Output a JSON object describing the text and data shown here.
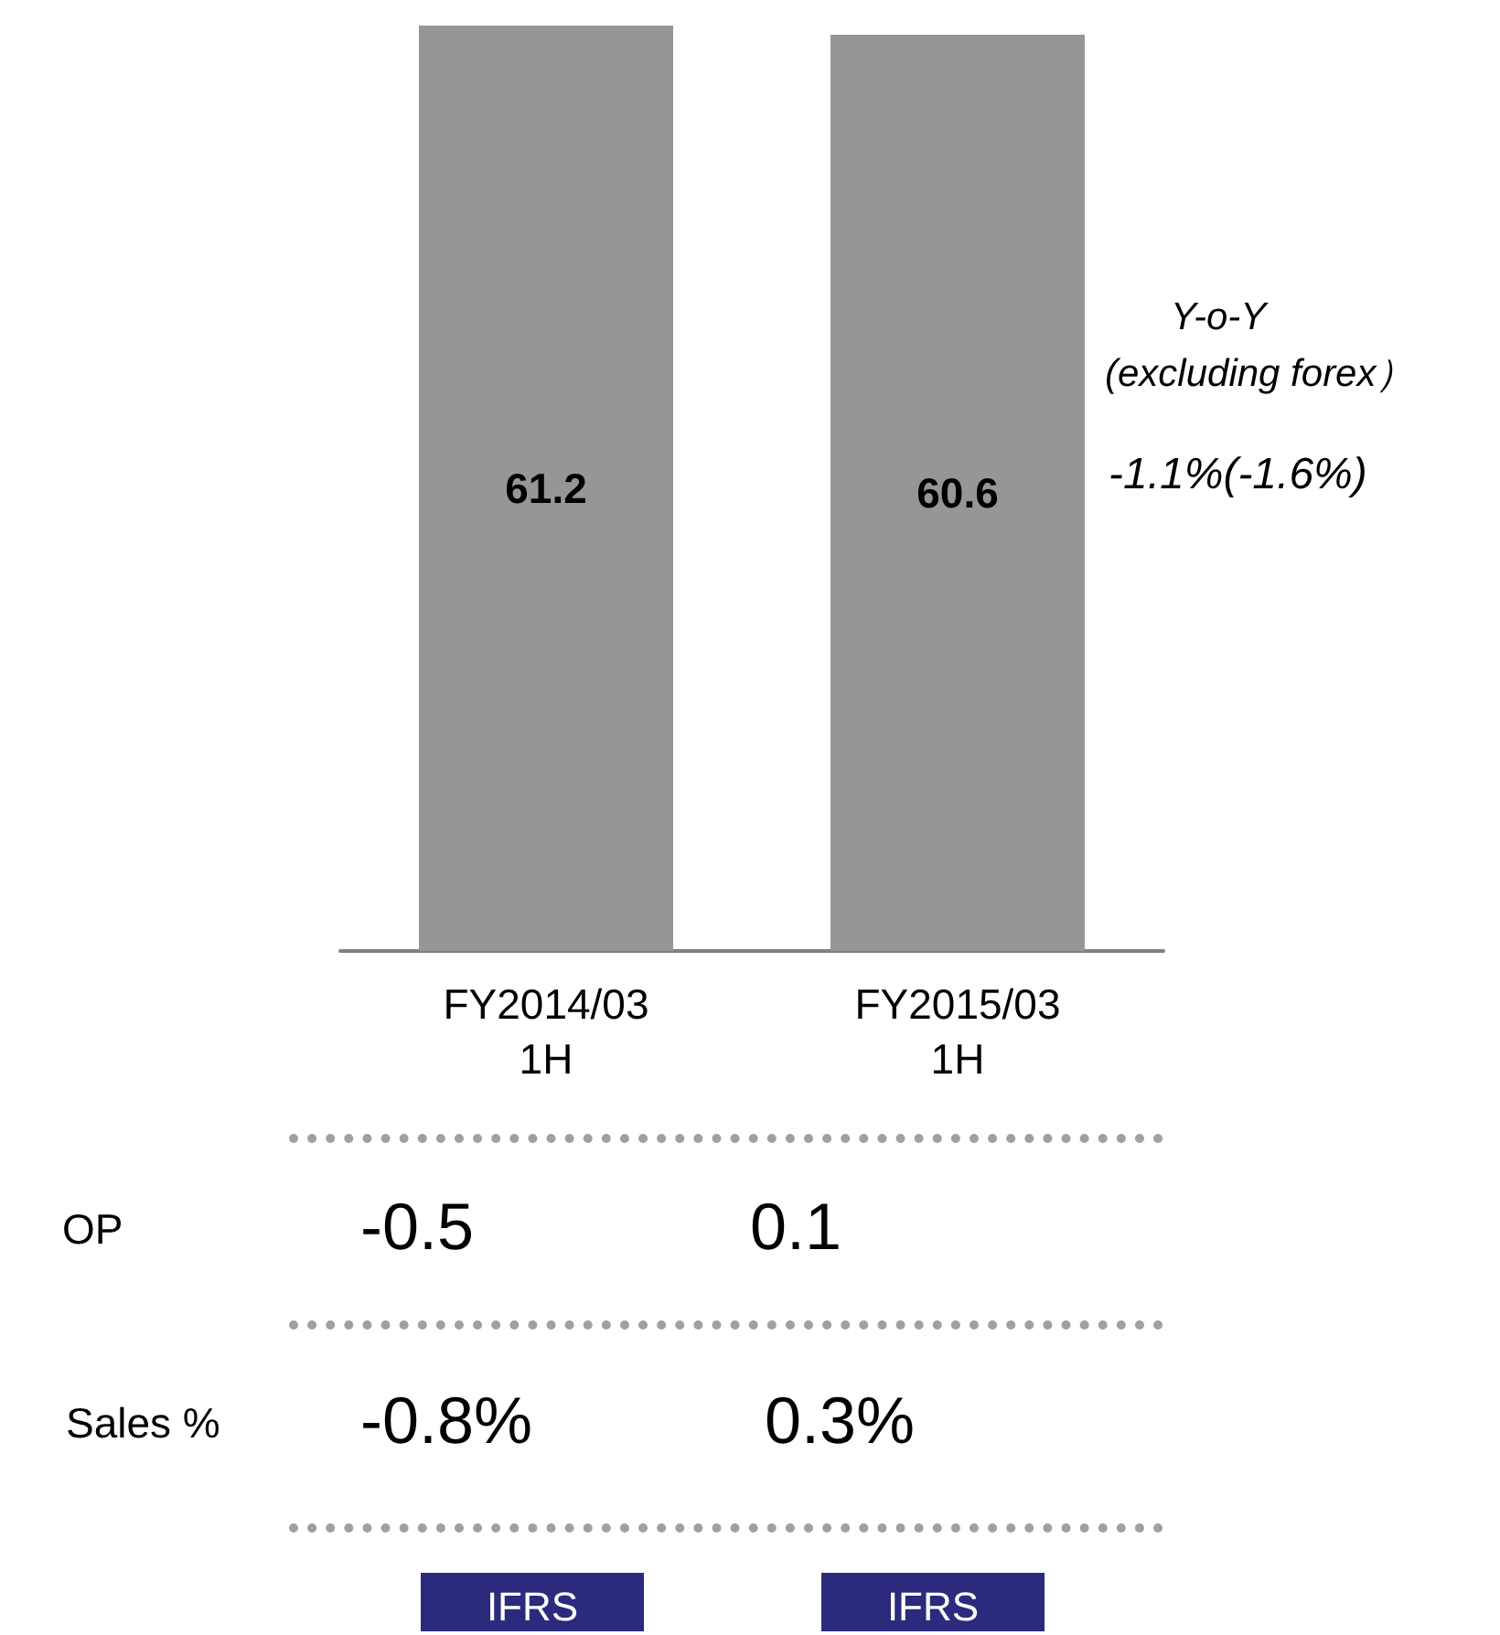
{
  "chart_data": {
    "type": "bar",
    "categories": [
      "FY2014/03\n1H",
      "FY2015/03\n1H"
    ],
    "values": [
      61.2,
      60.6
    ],
    "color": "#969696",
    "data_labels": true,
    "annotations": [
      "Y-o-Y",
      "(excluding forex）",
      "-1.1%(-1.6%)",
      "OP",
      "-0.5",
      "0.1",
      "Sales %",
      "-0.8%",
      "0.3%",
      "IFRS",
      "IFRS"
    ]
  }
}
